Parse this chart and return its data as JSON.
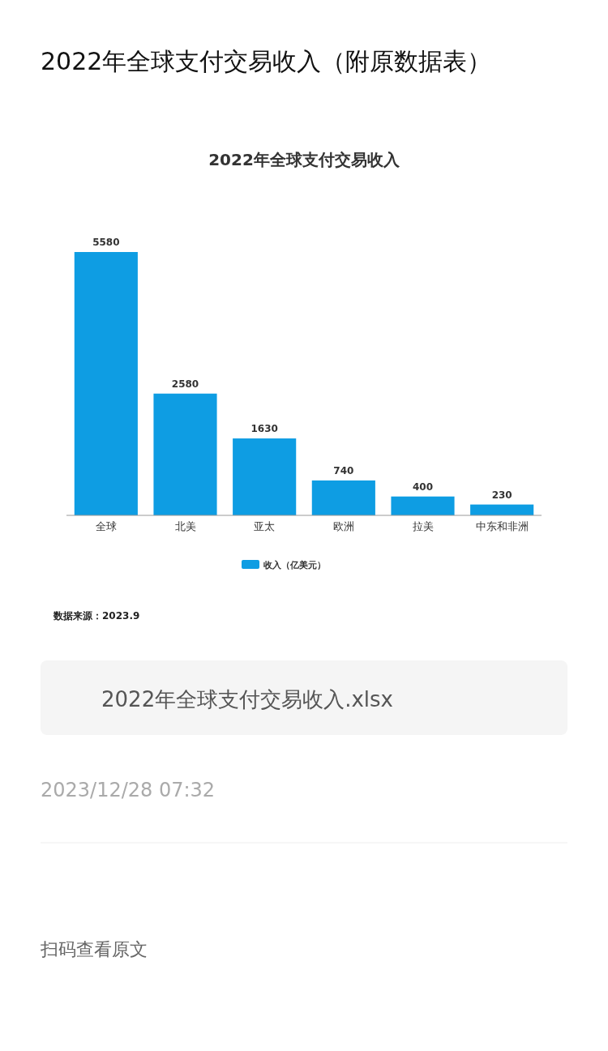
{
  "chart_data": {
    "type": "bar",
    "title": "2022年全球支付交易收入",
    "categories": [
      "全球",
      "北美",
      "亚太",
      "欧洲",
      "拉美",
      "中东和非洲"
    ],
    "series": [
      {
        "name": "收入（亿美元）",
        "color": "#0e9de3",
        "values": [
          5580,
          2580,
          1630,
          740,
          400,
          230
        ]
      }
    ],
    "data_labels": true,
    "legend": "bottom",
    "annotations": [
      "2022年全球支付交易收入（附原数据表）",
      "数据来源：2023.9",
      "2022年全球支付交易收入.xlsx",
      "2023/12/28 07:32",
      "扫码查看原文"
    ]
  }
}
